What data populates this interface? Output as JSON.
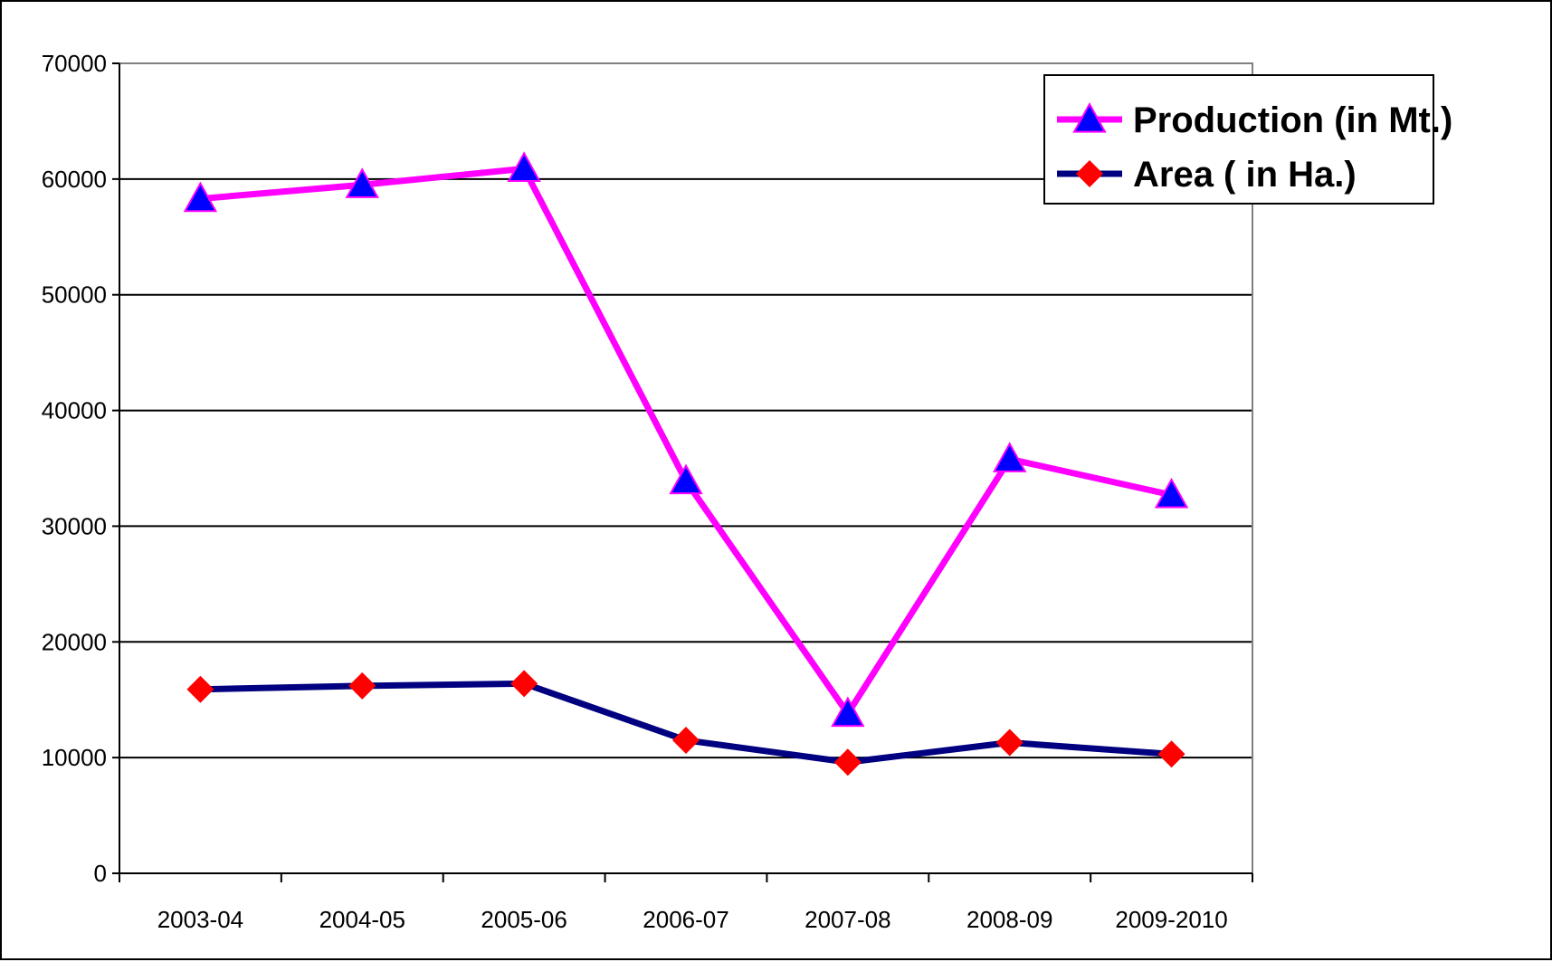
{
  "chart_data": {
    "type": "line",
    "categories": [
      "2003-04",
      "2004-05",
      "2005-06",
      "2006-07",
      "2007-08",
      "2008-09",
      "2009-2010"
    ],
    "series": [
      {
        "name": "Production (in Mt.)",
        "values": [
          58300,
          59500,
          60900,
          33900,
          13800,
          35800,
          32700
        ],
        "line_color": "#ff00ff",
        "marker": "triangle",
        "marker_color": "#0000ff"
      },
      {
        "name": "Area ( in Ha.)",
        "values": [
          15900,
          16200,
          16400,
          11500,
          9600,
          11300,
          10300
        ],
        "line_color": "#000080",
        "marker": "diamond",
        "marker_color": "#ff0000"
      }
    ],
    "ylim": [
      0,
      70000
    ],
    "yticks": [
      0,
      10000,
      20000,
      30000,
      40000,
      50000,
      60000,
      70000
    ],
    "grid": true,
    "legend_position": "top-right"
  }
}
